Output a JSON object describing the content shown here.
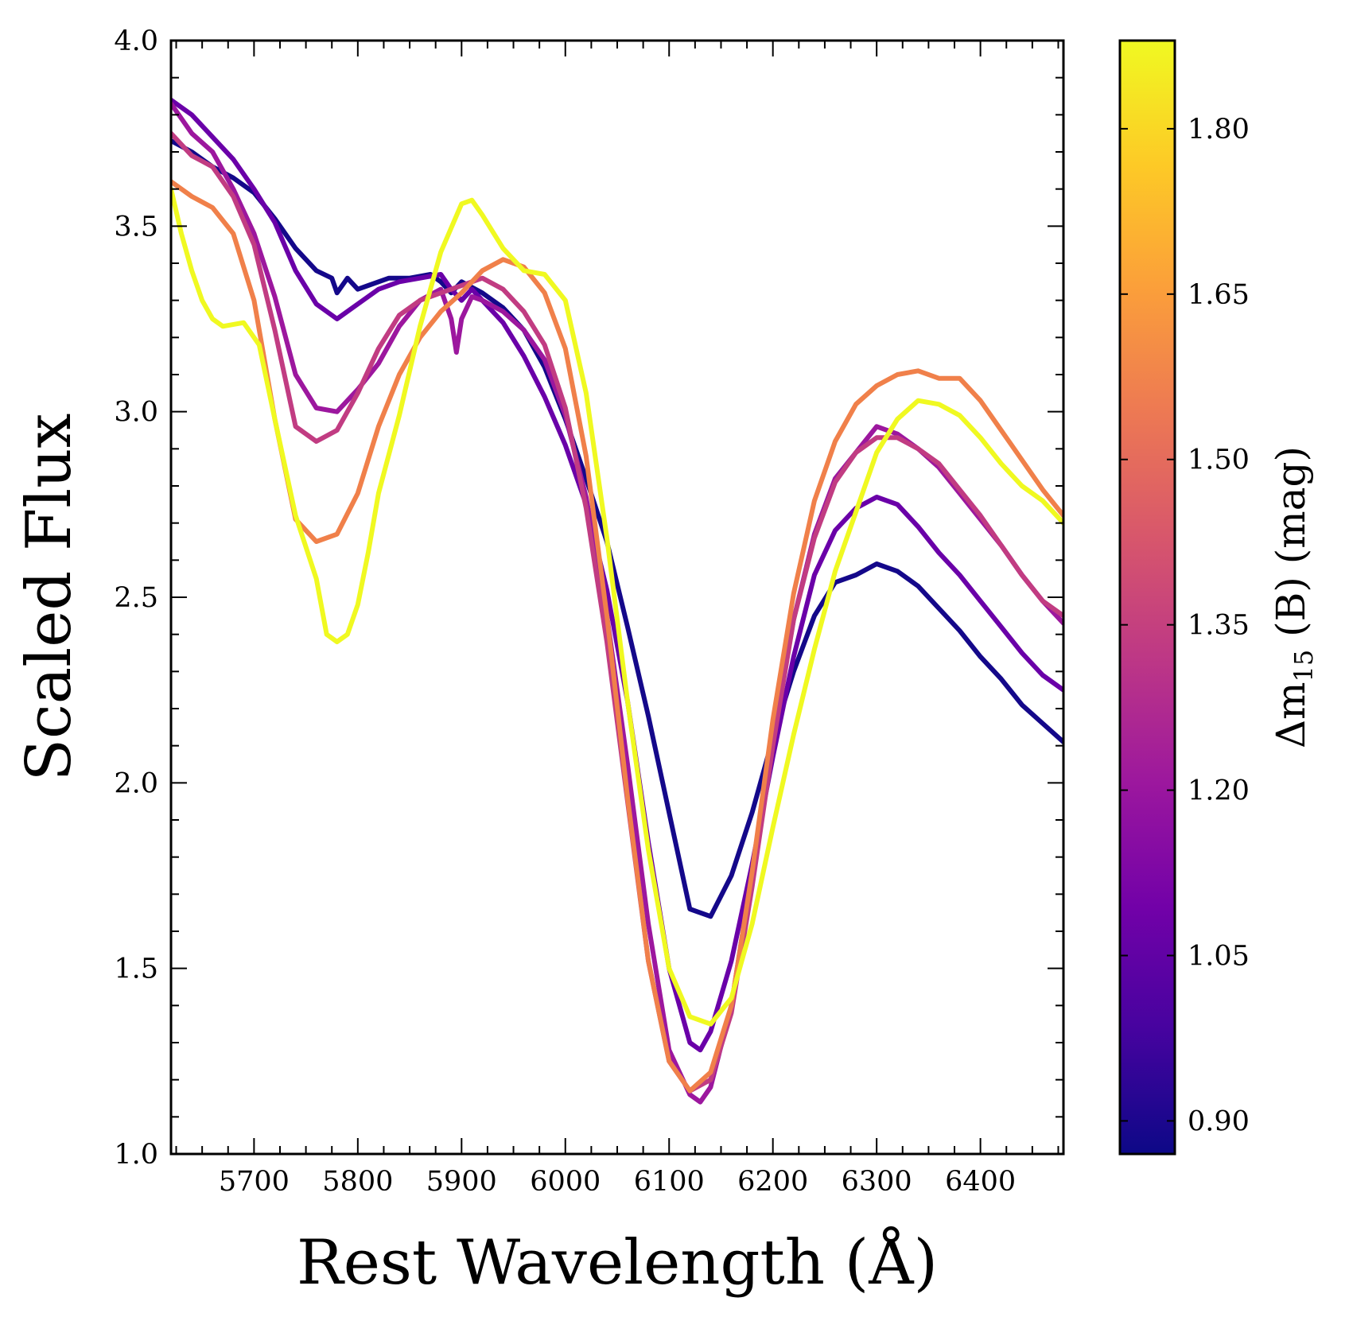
{
  "chart_data": {
    "type": "line",
    "xlabel": "Rest Wavelength (Å)",
    "ylabel": "Scaled Flux",
    "xlim": [
      5620,
      6480
    ],
    "ylim": [
      1.0,
      4.0
    ],
    "x_ticks": [
      5700,
      5800,
      5900,
      6000,
      6100,
      6200,
      6300,
      6400
    ],
    "x_minor_step": 25,
    "y_ticks": [
      1.0,
      1.5,
      2.0,
      2.5,
      3.0,
      3.5,
      4.0
    ],
    "y_minor_step": 0.1,
    "x_tick_labels": [
      "5700",
      "5800",
      "5900",
      "6000",
      "6100",
      "6200",
      "6300",
      "6400"
    ],
    "y_tick_labels": [
      "1.0",
      "1.5",
      "2.0",
      "2.5",
      "3.0",
      "3.5",
      "4.0"
    ],
    "grid": false,
    "colorbar": {
      "label_main": "Δm",
      "label_sub": "15",
      "label_rest": " (B) (mag)",
      "colormap": "plasma",
      "range": [
        0.87,
        1.88
      ],
      "ticks": [
        0.9,
        1.05,
        1.2,
        1.35,
        1.5,
        1.65,
        1.8
      ],
      "tick_labels": [
        "0.90",
        "1.05",
        "1.20",
        "1.35",
        "1.50",
        "1.65",
        "1.80"
      ],
      "stops": [
        "#0d0887",
        "#46039f",
        "#7201a8",
        "#9c179e",
        "#bd3786",
        "#d8576b",
        "#ed7953",
        "#fb9f3a",
        "#fdca26",
        "#f0f921"
      ]
    },
    "series": [
      {
        "dm15": 0.9,
        "color": "#14088a",
        "x": [
          5620,
          5640,
          5660,
          5680,
          5700,
          5720,
          5740,
          5760,
          5775,
          5780,
          5790,
          5800,
          5810,
          5830,
          5850,
          5870,
          5880,
          5890,
          5900,
          5920,
          5940,
          5960,
          5980,
          6000,
          6020,
          6040,
          6060,
          6080,
          6100,
          6120,
          6140,
          6160,
          6180,
          6200,
          6220,
          6240,
          6260,
          6280,
          6300,
          6320,
          6340,
          6360,
          6380,
          6400,
          6420,
          6440,
          6460,
          6480
        ],
        "y": [
          3.73,
          3.7,
          3.66,
          3.63,
          3.59,
          3.52,
          3.44,
          3.38,
          3.36,
          3.32,
          3.36,
          3.33,
          3.34,
          3.36,
          3.36,
          3.37,
          3.35,
          3.32,
          3.35,
          3.32,
          3.28,
          3.22,
          3.12,
          2.98,
          2.82,
          2.65,
          2.42,
          2.18,
          1.92,
          1.66,
          1.64,
          1.75,
          1.92,
          2.12,
          2.3,
          2.45,
          2.54,
          2.56,
          2.59,
          2.57,
          2.53,
          2.47,
          2.41,
          2.34,
          2.28,
          2.21,
          2.16,
          2.11
        ]
      },
      {
        "dm15": 1.1,
        "color": "#6a00a8",
        "x": [
          5620,
          5640,
          5660,
          5680,
          5700,
          5720,
          5740,
          5760,
          5780,
          5800,
          5820,
          5840,
          5860,
          5880,
          5890,
          5900,
          5910,
          5920,
          5940,
          5960,
          5980,
          6000,
          6020,
          6040,
          6060,
          6080,
          6100,
          6120,
          6130,
          6140,
          6160,
          6180,
          6200,
          6220,
          6240,
          6260,
          6280,
          6300,
          6320,
          6340,
          6360,
          6380,
          6400,
          6420,
          6440,
          6460,
          6480
        ],
        "y": [
          3.84,
          3.8,
          3.74,
          3.68,
          3.6,
          3.51,
          3.38,
          3.29,
          3.25,
          3.29,
          3.33,
          3.35,
          3.36,
          3.37,
          3.33,
          3.3,
          3.33,
          3.3,
          3.24,
          3.15,
          3.04,
          2.91,
          2.75,
          2.52,
          2.22,
          1.84,
          1.5,
          1.3,
          1.28,
          1.33,
          1.52,
          1.78,
          2.07,
          2.34,
          2.56,
          2.68,
          2.74,
          2.77,
          2.75,
          2.69,
          2.62,
          2.56,
          2.49,
          2.42,
          2.35,
          2.29,
          2.25
        ]
      },
      {
        "dm15": 1.22,
        "color": "#9c179e",
        "x": [
          5620,
          5640,
          5660,
          5680,
          5700,
          5720,
          5740,
          5760,
          5780,
          5800,
          5820,
          5840,
          5860,
          5880,
          5890,
          5895,
          5900,
          5910,
          5920,
          5940,
          5960,
          5980,
          6000,
          6020,
          6040,
          6060,
          6080,
          6100,
          6120,
          6130,
          6140,
          6160,
          6180,
          6200,
          6220,
          6240,
          6260,
          6280,
          6300,
          6320,
          6340,
          6360,
          6380,
          6400,
          6420,
          6440,
          6460,
          6480
        ],
        "y": [
          3.83,
          3.75,
          3.7,
          3.6,
          3.48,
          3.31,
          3.1,
          3.01,
          3.0,
          3.06,
          3.13,
          3.23,
          3.3,
          3.33,
          3.25,
          3.16,
          3.25,
          3.31,
          3.3,
          3.27,
          3.22,
          3.14,
          2.99,
          2.77,
          2.45,
          2.05,
          1.62,
          1.28,
          1.16,
          1.14,
          1.18,
          1.4,
          1.76,
          2.12,
          2.44,
          2.67,
          2.82,
          2.89,
          2.96,
          2.94,
          2.9,
          2.85,
          2.78,
          2.71,
          2.64,
          2.56,
          2.49,
          2.43
        ]
      },
      {
        "dm15": 1.38,
        "color": "#c13c82",
        "x": [
          5620,
          5640,
          5660,
          5680,
          5700,
          5720,
          5740,
          5760,
          5780,
          5800,
          5820,
          5840,
          5860,
          5880,
          5900,
          5920,
          5940,
          5960,
          5980,
          6000,
          6020,
          6040,
          6060,
          6080,
          6100,
          6120,
          6140,
          6160,
          6180,
          6200,
          6220,
          6240,
          6260,
          6280,
          6300,
          6320,
          6340,
          6360,
          6380,
          6400,
          6420,
          6440,
          6460,
          6480
        ],
        "y": [
          3.75,
          3.69,
          3.66,
          3.58,
          3.45,
          3.22,
          2.96,
          2.92,
          2.95,
          3.05,
          3.17,
          3.26,
          3.3,
          3.32,
          3.34,
          3.36,
          3.33,
          3.27,
          3.18,
          3.01,
          2.74,
          2.38,
          1.95,
          1.52,
          1.25,
          1.17,
          1.2,
          1.38,
          1.72,
          2.1,
          2.44,
          2.66,
          2.81,
          2.89,
          2.93,
          2.93,
          2.9,
          2.86,
          2.79,
          2.72,
          2.64,
          2.56,
          2.49,
          2.45
        ]
      },
      {
        "dm15": 1.58,
        "color": "#f0804a",
        "x": [
          5620,
          5640,
          5660,
          5680,
          5700,
          5720,
          5740,
          5760,
          5780,
          5800,
          5820,
          5840,
          5860,
          5880,
          5900,
          5920,
          5940,
          5960,
          5980,
          6000,
          6020,
          6040,
          6060,
          6080,
          6100,
          6120,
          6140,
          6160,
          6180,
          6200,
          6220,
          6240,
          6260,
          6280,
          6300,
          6320,
          6340,
          6360,
          6380,
          6400,
          6420,
          6440,
          6460,
          6480
        ],
        "y": [
          3.62,
          3.58,
          3.55,
          3.48,
          3.3,
          2.98,
          2.71,
          2.65,
          2.67,
          2.78,
          2.96,
          3.1,
          3.2,
          3.27,
          3.32,
          3.38,
          3.41,
          3.39,
          3.32,
          3.17,
          2.88,
          2.45,
          1.96,
          1.52,
          1.25,
          1.17,
          1.22,
          1.4,
          1.76,
          2.17,
          2.51,
          2.76,
          2.92,
          3.02,
          3.07,
          3.1,
          3.11,
          3.09,
          3.09,
          3.03,
          2.95,
          2.87,
          2.79,
          2.72
        ]
      },
      {
        "dm15": 1.85,
        "color": "#f0f921",
        "x": [
          5620,
          5630,
          5640,
          5650,
          5660,
          5670,
          5690,
          5705,
          5720,
          5740,
          5760,
          5770,
          5780,
          5790,
          5800,
          5810,
          5820,
          5840,
          5860,
          5880,
          5900,
          5910,
          5920,
          5940,
          5960,
          5980,
          6000,
          6020,
          6040,
          6060,
          6080,
          6100,
          6120,
          6140,
          6160,
          6180,
          6200,
          6220,
          6240,
          6260,
          6280,
          6300,
          6320,
          6340,
          6360,
          6380,
          6400,
          6420,
          6440,
          6460,
          6480
        ],
        "y": [
          3.6,
          3.48,
          3.38,
          3.3,
          3.25,
          3.23,
          3.24,
          3.18,
          2.98,
          2.72,
          2.55,
          2.4,
          2.38,
          2.4,
          2.48,
          2.62,
          2.78,
          2.99,
          3.23,
          3.43,
          3.56,
          3.57,
          3.53,
          3.44,
          3.38,
          3.37,
          3.3,
          3.05,
          2.66,
          2.22,
          1.82,
          1.5,
          1.37,
          1.35,
          1.42,
          1.62,
          1.88,
          2.13,
          2.36,
          2.57,
          2.73,
          2.89,
          2.98,
          3.03,
          3.02,
          2.99,
          2.93,
          2.86,
          2.8,
          2.76,
          2.7
        ]
      }
    ]
  }
}
